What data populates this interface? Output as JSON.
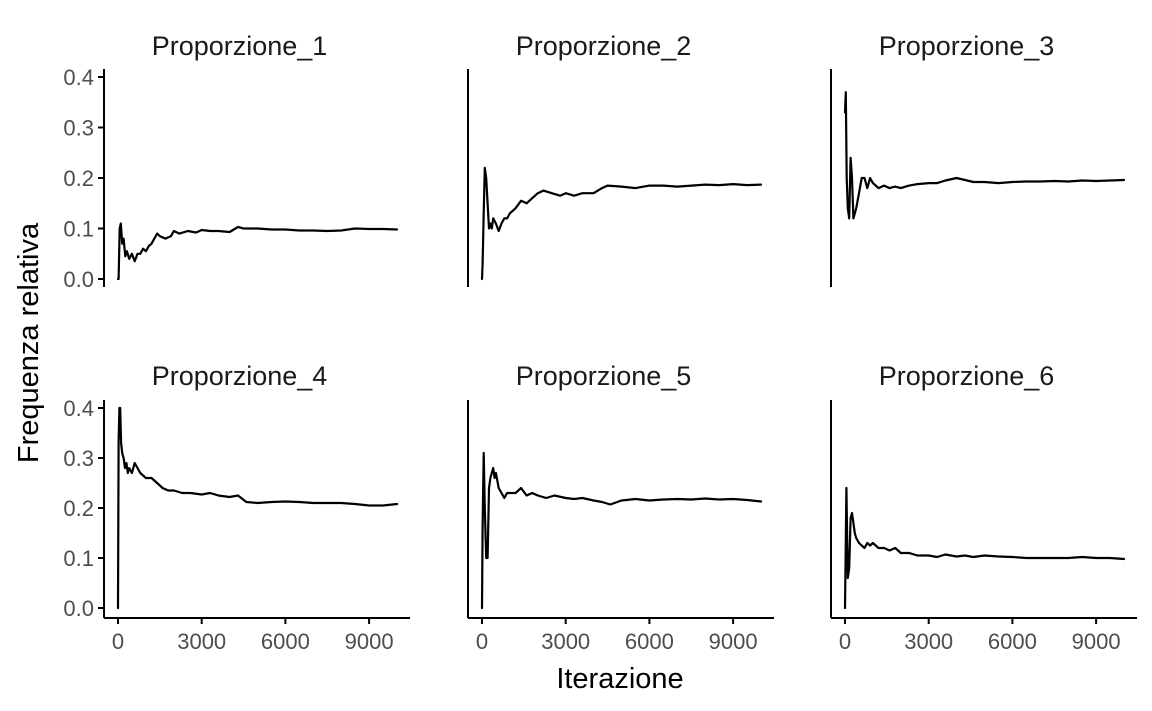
{
  "chart_data": {
    "type": "line",
    "layout": "facet-grid",
    "facet_rows": 2,
    "facet_cols": 3,
    "xlabel": "Iterazione",
    "ylabel": "Frequenza relativa",
    "xlim": [
      0,
      10000
    ],
    "ylim": [
      0,
      0.4
    ],
    "x_ticks": [
      0,
      3000,
      6000,
      9000
    ],
    "x_tick_labels": [
      "0",
      "3000",
      "6000",
      "9000"
    ],
    "y_ticks": [
      0,
      0.1,
      0.2,
      0.3,
      0.4
    ],
    "y_tick_labels": [
      "0.0",
      "0.1",
      "0.2",
      "0.3",
      "0.4"
    ],
    "line_color": "#000000",
    "grid": false,
    "panels": [
      {
        "title": "Proporzione_1",
        "x": [
          1,
          20,
          60,
          100,
          150,
          200,
          260,
          320,
          400,
          500,
          600,
          700,
          800,
          900,
          1000,
          1100,
          1200,
          1300,
          1400,
          1500,
          1700,
          1900,
          2000,
          2200,
          2500,
          2800,
          3000,
          3300,
          3600,
          4000,
          4300,
          4500,
          5000,
          5500,
          6000,
          6500,
          7000,
          7500,
          8000,
          8500,
          9000,
          9500,
          10000
        ],
        "y": [
          0,
          0,
          0.1,
          0.11,
          0.07,
          0.08,
          0.045,
          0.055,
          0.04,
          0.05,
          0.035,
          0.05,
          0.05,
          0.06,
          0.055,
          0.065,
          0.07,
          0.08,
          0.09,
          0.085,
          0.08,
          0.085,
          0.095,
          0.09,
          0.095,
          0.092,
          0.097,
          0.095,
          0.095,
          0.093,
          0.103,
          0.1,
          0.1,
          0.098,
          0.098,
          0.096,
          0.096,
          0.095,
          0.096,
          0.1,
          0.099,
          0.099,
          0.098
        ]
      },
      {
        "title": "Proporzione_2",
        "x": [
          1,
          20,
          60,
          100,
          150,
          200,
          250,
          300,
          350,
          400,
          500,
          600,
          700,
          800,
          900,
          1000,
          1200,
          1400,
          1600,
          1800,
          2000,
          2200,
          2500,
          2800,
          3000,
          3300,
          3600,
          4000,
          4300,
          4500,
          5000,
          5500,
          6000,
          6500,
          7000,
          7500,
          8000,
          8500,
          9000,
          9500,
          10000
        ],
        "y": [
          0,
          0.03,
          0.13,
          0.22,
          0.2,
          0.15,
          0.1,
          0.11,
          0.1,
          0.12,
          0.11,
          0.095,
          0.11,
          0.12,
          0.12,
          0.13,
          0.14,
          0.155,
          0.15,
          0.16,
          0.17,
          0.175,
          0.17,
          0.165,
          0.17,
          0.165,
          0.17,
          0.17,
          0.18,
          0.185,
          0.183,
          0.18,
          0.185,
          0.185,
          0.183,
          0.185,
          0.187,
          0.186,
          0.188,
          0.186,
          0.187
        ]
      },
      {
        "title": "Proporzione_3",
        "x": [
          1,
          30,
          60,
          100,
          150,
          200,
          250,
          300,
          400,
          500,
          600,
          700,
          800,
          900,
          1000,
          1200,
          1400,
          1600,
          1800,
          2000,
          2300,
          2600,
          3000,
          3300,
          3600,
          4000,
          4300,
          4600,
          5000,
          5500,
          6000,
          6500,
          7000,
          7500,
          8000,
          8500,
          9000,
          9500,
          10000
        ],
        "y": [
          0.33,
          0.37,
          0.2,
          0.14,
          0.12,
          0.24,
          0.2,
          0.12,
          0.14,
          0.17,
          0.2,
          0.2,
          0.18,
          0.2,
          0.19,
          0.18,
          0.185,
          0.18,
          0.183,
          0.18,
          0.185,
          0.188,
          0.19,
          0.19,
          0.195,
          0.2,
          0.196,
          0.192,
          0.192,
          0.19,
          0.192,
          0.193,
          0.193,
          0.194,
          0.193,
          0.195,
          0.194,
          0.195,
          0.196
        ]
      },
      {
        "title": "Proporzione_4",
        "x": [
          1,
          20,
          50,
          80,
          110,
          150,
          200,
          250,
          300,
          350,
          400,
          500,
          600,
          700,
          800,
          1000,
          1200,
          1400,
          1600,
          1800,
          2000,
          2300,
          2600,
          3000,
          3300,
          3600,
          4000,
          4300,
          4600,
          5000,
          5500,
          6000,
          6500,
          7000,
          7500,
          8000,
          8500,
          9000,
          9500,
          10000
        ],
        "y": [
          0,
          0.33,
          0.4,
          0.4,
          0.33,
          0.31,
          0.3,
          0.28,
          0.29,
          0.27,
          0.28,
          0.27,
          0.29,
          0.28,
          0.27,
          0.26,
          0.26,
          0.25,
          0.24,
          0.235,
          0.235,
          0.23,
          0.23,
          0.227,
          0.23,
          0.225,
          0.222,
          0.225,
          0.212,
          0.21,
          0.212,
          0.213,
          0.212,
          0.21,
          0.21,
          0.21,
          0.208,
          0.205,
          0.205,
          0.208
        ]
      },
      {
        "title": "Proporzione_5",
        "x": [
          1,
          20,
          60,
          100,
          150,
          200,
          250,
          300,
          350,
          400,
          450,
          500,
          600,
          700,
          800,
          900,
          1000,
          1200,
          1400,
          1600,
          1800,
          2000,
          2300,
          2600,
          3000,
          3300,
          3600,
          4000,
          4300,
          4600,
          5000,
          5500,
          6000,
          6500,
          7000,
          7500,
          8000,
          8500,
          9000,
          9500,
          10000
        ],
        "y": [
          0,
          0.16,
          0.31,
          0.2,
          0.1,
          0.1,
          0.24,
          0.26,
          0.27,
          0.28,
          0.26,
          0.27,
          0.24,
          0.23,
          0.22,
          0.23,
          0.23,
          0.23,
          0.24,
          0.225,
          0.23,
          0.225,
          0.22,
          0.225,
          0.22,
          0.218,
          0.22,
          0.215,
          0.212,
          0.207,
          0.215,
          0.218,
          0.215,
          0.217,
          0.218,
          0.217,
          0.219,
          0.217,
          0.218,
          0.216,
          0.213
        ]
      },
      {
        "title": "Proporzione_6",
        "x": [
          1,
          20,
          50,
          100,
          150,
          200,
          250,
          300,
          350,
          400,
          500,
          600,
          700,
          800,
          900,
          1000,
          1200,
          1400,
          1600,
          1800,
          2000,
          2300,
          2600,
          3000,
          3300,
          3600,
          4000,
          4300,
          4600,
          5000,
          5500,
          6000,
          6500,
          7000,
          7500,
          8000,
          8500,
          9000,
          9500,
          10000
        ],
        "y": [
          0,
          0.1,
          0.24,
          0.06,
          0.08,
          0.18,
          0.19,
          0.17,
          0.15,
          0.14,
          0.13,
          0.125,
          0.12,
          0.13,
          0.125,
          0.13,
          0.12,
          0.12,
          0.115,
          0.12,
          0.11,
          0.11,
          0.105,
          0.105,
          0.102,
          0.107,
          0.103,
          0.105,
          0.102,
          0.105,
          0.103,
          0.102,
          0.1,
          0.1,
          0.1,
          0.1,
          0.102,
          0.1,
          0.1,
          0.098
        ]
      }
    ]
  }
}
